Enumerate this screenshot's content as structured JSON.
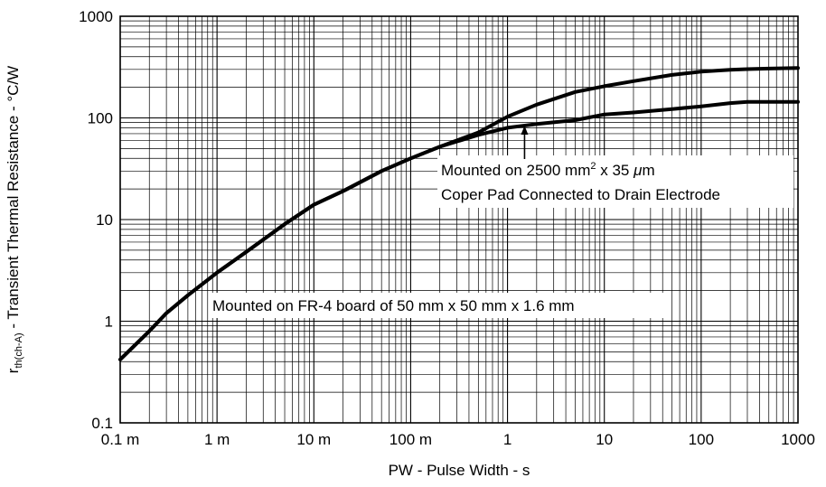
{
  "chart_data": {
    "type": "line",
    "xlabel": "PW - Pulse Width - s",
    "ylabel": {
      "symbol": "r",
      "subscript": "th(ch-A)",
      "rest": " - Transient Thermal Resistance - °C/W"
    },
    "x_scale": "log",
    "y_scale": "log",
    "xlim": [
      0.0001,
      1000
    ],
    "ylim": [
      0.1,
      1000
    ],
    "x_ticks": [
      0.0001,
      0.001,
      0.01,
      0.1,
      1,
      10,
      100,
      1000
    ],
    "x_tick_labels": [
      "0.1 m",
      "1 m",
      "10 m",
      "100 m",
      "1",
      "10",
      "100",
      "1000"
    ],
    "y_ticks": [
      0.1,
      1,
      10,
      100,
      1000
    ],
    "y_tick_labels": [
      "0.1",
      "1",
      "10",
      "100",
      "1000"
    ],
    "grid": true,
    "series": [
      {
        "x": [
          0.0001,
          0.0002,
          0.0003,
          0.0005,
          0.001,
          0.002,
          0.005,
          0.01,
          0.02,
          0.05,
          0.1,
          0.2,
          0.5,
          1,
          2,
          5,
          10,
          20,
          50,
          100,
          200,
          300,
          500,
          1000
        ],
        "y": [
          0.42,
          0.8,
          1.2,
          1.8,
          3.0,
          4.8,
          9.0,
          14.0,
          19.0,
          30.0,
          40.0,
          52.0,
          72.0,
          103.0,
          135.0,
          180.0,
          205.0,
          230.0,
          265.0,
          285.0,
          298.0,
          302.0,
          306.0,
          310.0
        ]
      },
      {
        "x": [
          0.0001,
          0.0002,
          0.0003,
          0.0005,
          0.001,
          0.002,
          0.005,
          0.01,
          0.02,
          0.05,
          0.1,
          0.2,
          0.5,
          1,
          2,
          5,
          10,
          20,
          50,
          100,
          200,
          300,
          500,
          1000
        ],
        "y": [
          0.42,
          0.8,
          1.2,
          1.8,
          3.0,
          4.8,
          9.0,
          14.0,
          19.0,
          30.0,
          40.0,
          52.0,
          68.0,
          80.0,
          87.0,
          95.0,
          108.0,
          113.0,
          122.0,
          130.0,
          140.0,
          144.0,
          144.0,
          144.0
        ]
      }
    ],
    "annotations": [
      {
        "line1": {
          "before": "Mounted on 2500 mm",
          "sup": "2",
          "after": " x 35 ",
          "mu": "μ",
          "end": "m"
        },
        "line2": "Coper Pad Connected to Drain Electrode",
        "arrow_target": {
          "x": 1.5,
          "y": 84
        }
      },
      {
        "text": "Mounted on FR-4 board of 50 mm x 50 mm x 1.6 mm"
      }
    ]
  }
}
